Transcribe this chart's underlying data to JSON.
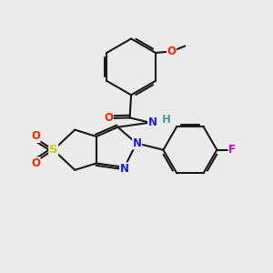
{
  "bg_color": "#ebebeb",
  "bond_color": "#1a1a1a",
  "bond_width": 1.5,
  "dbo": 0.08,
  "atom_colors": {
    "N": "#1a1aff",
    "O": "#ff2200",
    "S": "#cccc00",
    "F": "#cc00cc",
    "H": "#4a9a9a",
    "C": "#1a1a1a"
  },
  "fs": 8.5,
  "fig_size": [
    3.0,
    3.0
  ],
  "dpi": 100
}
